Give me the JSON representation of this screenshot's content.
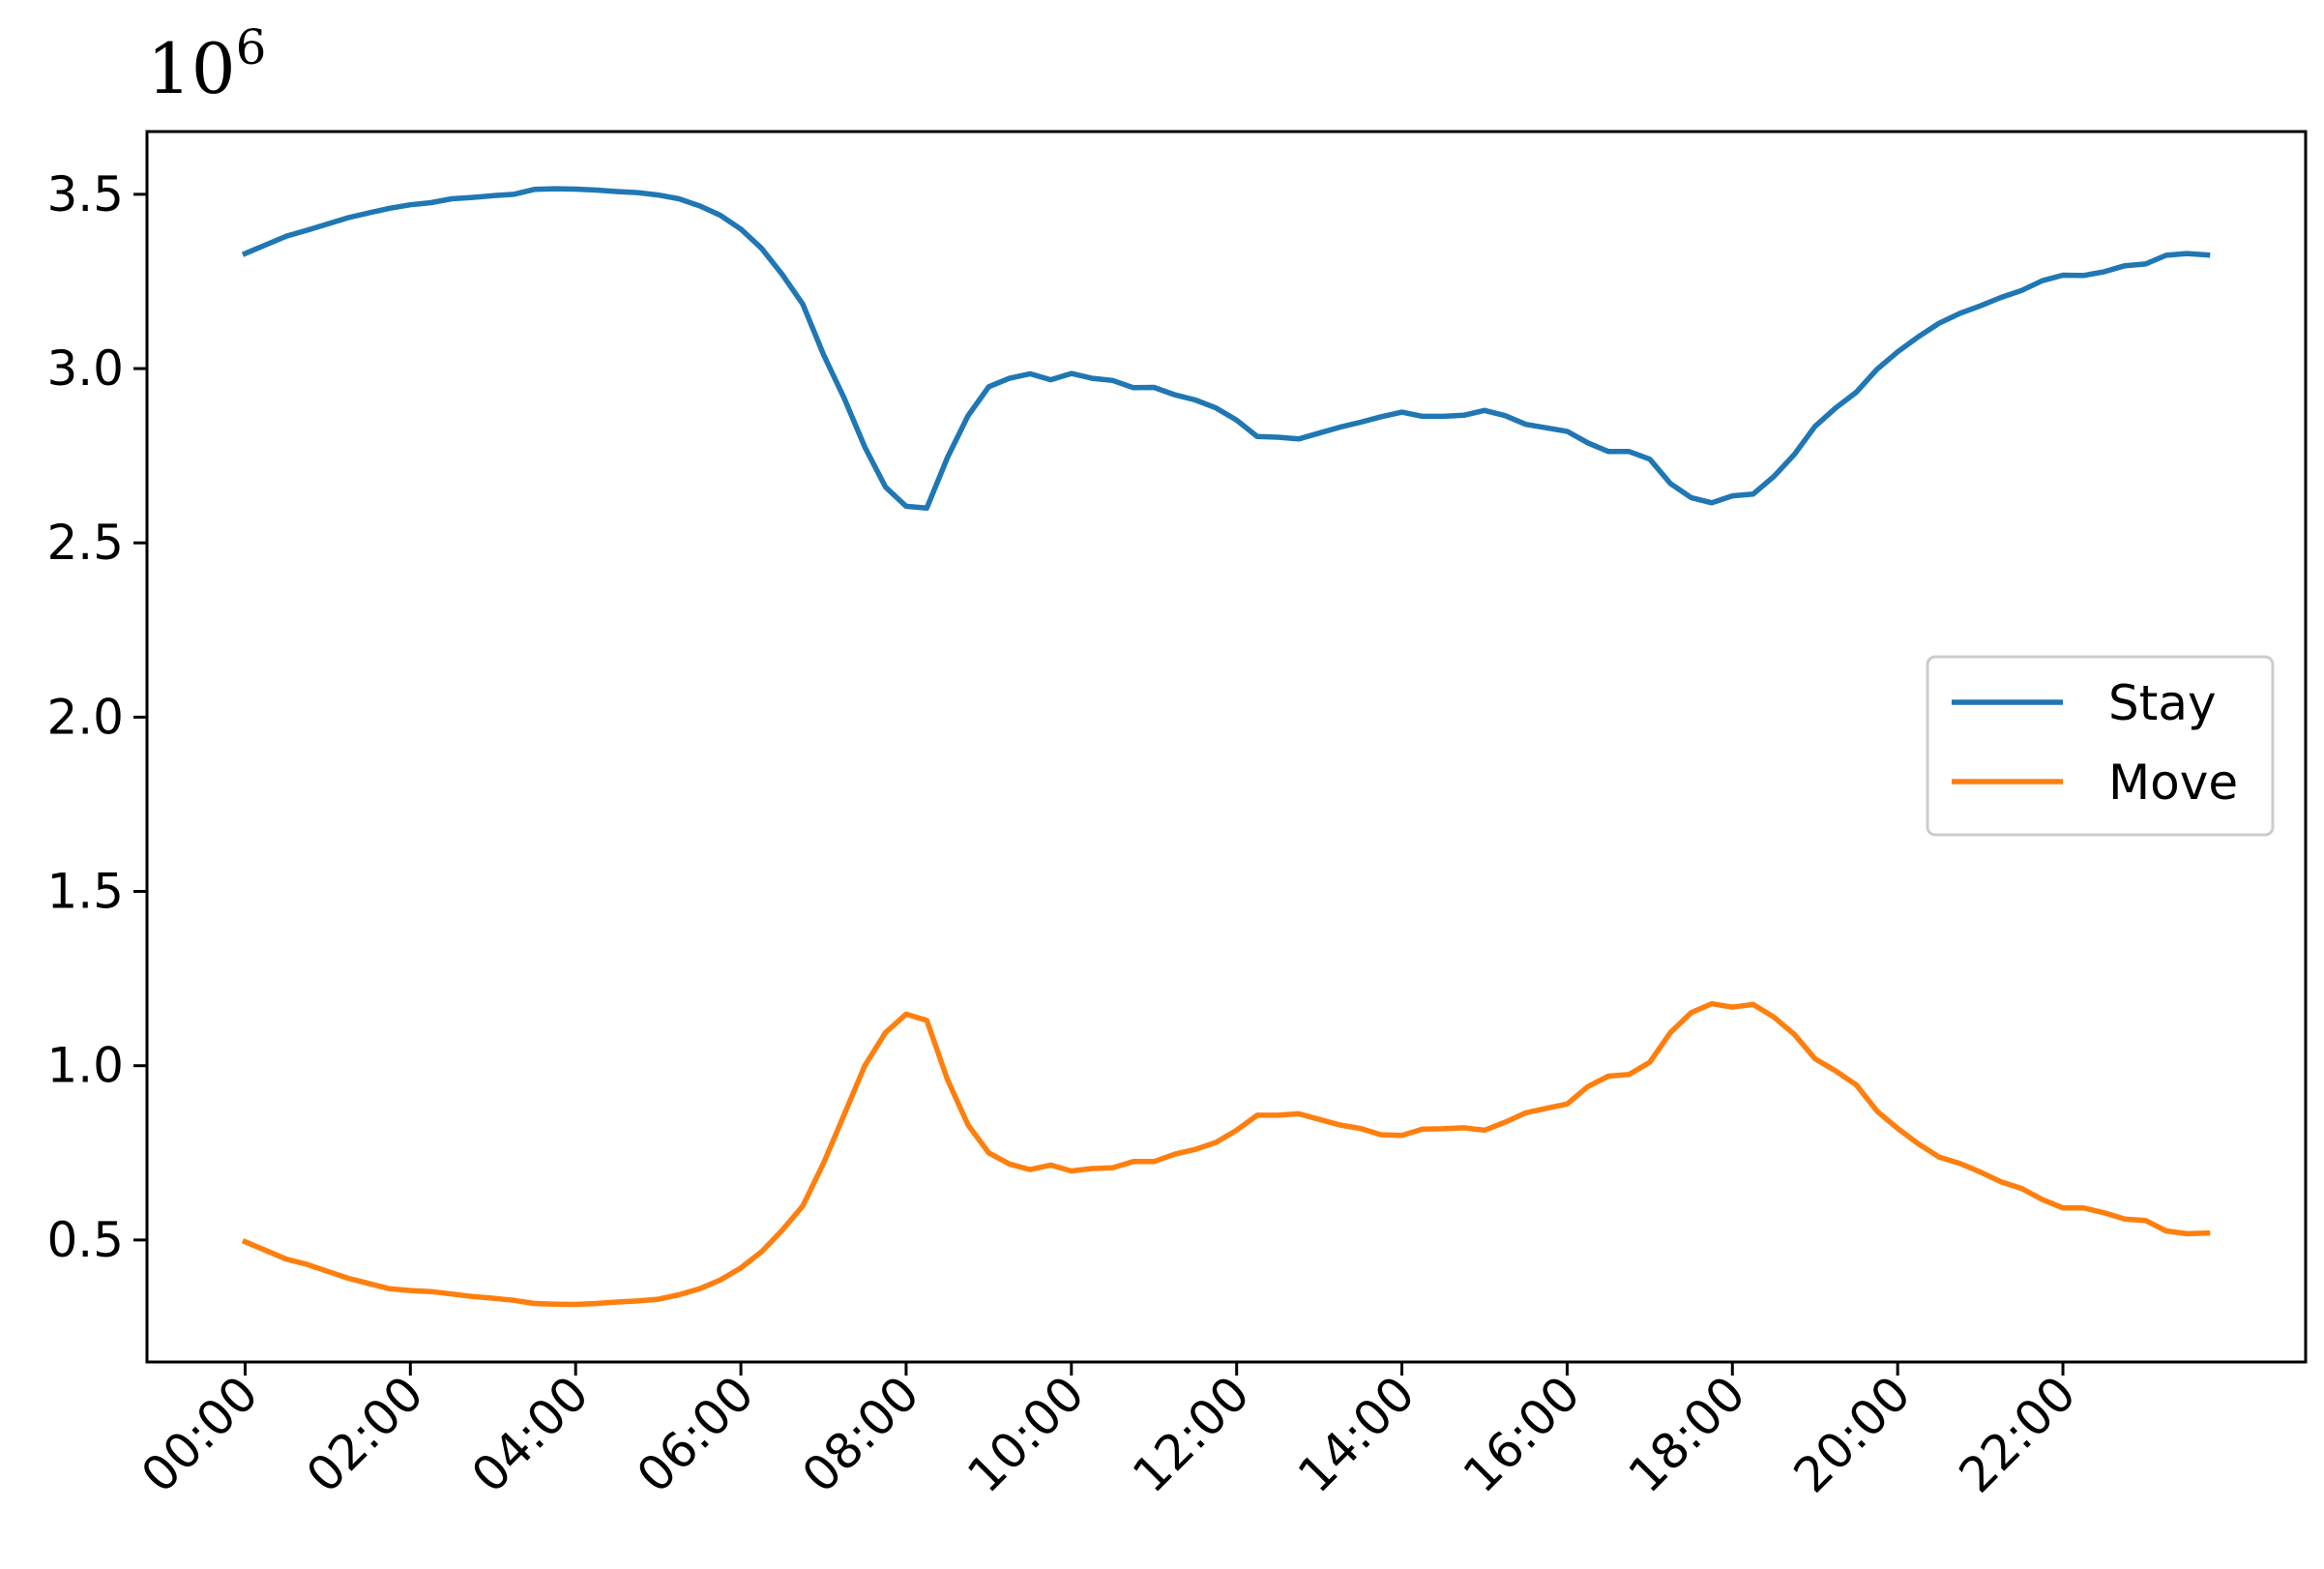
{
  "chart_data": {
    "type": "line",
    "title": "",
    "xlabel": "",
    "ylabel": "",
    "y_scale_label": {
      "base": "10",
      "exponent": "6"
    },
    "x_tick_labels": [
      "00:00",
      "02:00",
      "04:00",
      "06:00",
      "08:00",
      "10:00",
      "12:00",
      "14:00",
      "16:00",
      "18:00",
      "20:00",
      "22:00"
    ],
    "x_tick_positions": [
      0,
      8,
      16,
      24,
      32,
      40,
      48,
      56,
      64,
      72,
      80,
      88
    ],
    "y_ticks": [
      0.5,
      1.0,
      1.5,
      2.0,
      2.5,
      3.0,
      3.5
    ],
    "y_tick_labels": [
      "0.5",
      "1.0",
      "1.5",
      "2.0",
      "2.5",
      "3.0",
      "3.5"
    ],
    "xlim": [
      -4.75,
      99.75
    ],
    "ylim": [
      0.15,
      3.68
    ],
    "grid": false,
    "legend_position": "center-right",
    "x_index_note": "15-minute intervals",
    "series": [
      {
        "name": "Stay",
        "color": "#1f77b4",
        "values": [
          3.33,
          3.355,
          3.38,
          3.397,
          3.415,
          3.433,
          3.447,
          3.46,
          3.47,
          3.476,
          3.487,
          3.491,
          3.496,
          3.5,
          3.514,
          3.516,
          3.515,
          3.512,
          3.508,
          3.505,
          3.498,
          3.487,
          3.467,
          3.44,
          3.4,
          3.345,
          3.27,
          3.185,
          3.04,
          2.915,
          2.775,
          2.66,
          2.605,
          2.6,
          2.745,
          2.865,
          2.948,
          2.972,
          2.985,
          2.968,
          2.986,
          2.972,
          2.966,
          2.945,
          2.946,
          2.925,
          2.91,
          2.887,
          2.852,
          2.805,
          2.803,
          2.798,
          2.815,
          2.832,
          2.846,
          2.862,
          2.875,
          2.863,
          2.863,
          2.866,
          2.88,
          2.865,
          2.84,
          2.83,
          2.82,
          2.787,
          2.762,
          2.762,
          2.74,
          2.67,
          2.63,
          2.615,
          2.635,
          2.64,
          2.69,
          2.754,
          2.834,
          2.887,
          2.932,
          2.998,
          3.048,
          3.091,
          3.13,
          3.158,
          3.18,
          3.204,
          3.224,
          3.252,
          3.268,
          3.267,
          3.278,
          3.295,
          3.3,
          3.325,
          3.33,
          3.326
        ]
      },
      {
        "name": "Move",
        "color": "#ff7f0e",
        "values": [
          0.495,
          0.47,
          0.445,
          0.43,
          0.41,
          0.39,
          0.375,
          0.36,
          0.355,
          0.352,
          0.345,
          0.338,
          0.333,
          0.327,
          0.318,
          0.316,
          0.315,
          0.318,
          0.322,
          0.325,
          0.33,
          0.343,
          0.36,
          0.385,
          0.42,
          0.466,
          0.528,
          0.598,
          0.72,
          0.86,
          1.0,
          1.095,
          1.148,
          1.13,
          0.96,
          0.83,
          0.75,
          0.718,
          0.702,
          0.715,
          0.698,
          0.705,
          0.707,
          0.725,
          0.725,
          0.746,
          0.76,
          0.78,
          0.815,
          0.858,
          0.858,
          0.862,
          0.846,
          0.83,
          0.82,
          0.802,
          0.8,
          0.818,
          0.819,
          0.822,
          0.815,
          0.838,
          0.865,
          0.878,
          0.89,
          0.94,
          0.97,
          0.975,
          1.01,
          1.095,
          1.152,
          1.178,
          1.168,
          1.176,
          1.14,
          1.09,
          1.02,
          0.985,
          0.945,
          0.87,
          0.82,
          0.776,
          0.738,
          0.72,
          0.695,
          0.667,
          0.648,
          0.616,
          0.592,
          0.592,
          0.578,
          0.56,
          0.556,
          0.526,
          0.518,
          0.52
        ]
      }
    ]
  }
}
